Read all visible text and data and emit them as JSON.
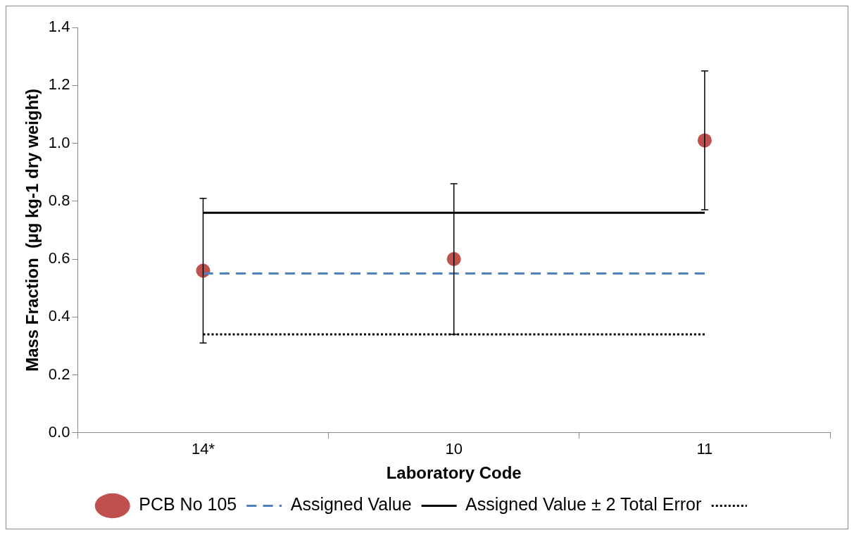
{
  "chart_data": {
    "type": "scatter",
    "xlabel": "Laboratory Code",
    "ylabel": "Mass Fraction  (µg kg-1 dry weight)",
    "categories": [
      "14*",
      "10",
      "11"
    ],
    "ylim": [
      0,
      1.4
    ],
    "yticks": [
      {
        "value": 0,
        "label": "0.0"
      },
      {
        "value": 0.2,
        "label": "0.2"
      },
      {
        "value": 0.4,
        "label": "0.4"
      },
      {
        "value": 0.6,
        "label": "0.6"
      },
      {
        "value": 0.8,
        "label": "0.8"
      },
      {
        "value": 1,
        "label": "1.0"
      },
      {
        "value": 1.2,
        "label": "1.2"
      },
      {
        "value": 1.4,
        "label": "1.4"
      }
    ],
    "grid": false,
    "legend": "bottom",
    "marker": "circle",
    "series": [
      {
        "name": "PCB No 105",
        "type": "scatter",
        "color": "#c0504d",
        "values": [
          0.56,
          0.6,
          1.01
        ],
        "errors": [
          0.25,
          0.26,
          0.24
        ]
      },
      {
        "name": "Assigned Value",
        "type": "line",
        "color": "#4f81bd",
        "line_style": "dashed",
        "marker": "none",
        "values": [
          0.55,
          0.55,
          0.55
        ]
      },
      {
        "name": "Assigned Value ± 2 Total Error",
        "type": "line",
        "color": "#000000",
        "line_style": "solid",
        "marker": "none",
        "values": [
          0.76,
          0.76,
          0.76
        ]
      },
      {
        "type": "line",
        "color": "#000000",
        "line_style": "dotted",
        "marker": "none",
        "values": [
          0.34,
          0.34,
          0.34
        ]
      }
    ]
  }
}
